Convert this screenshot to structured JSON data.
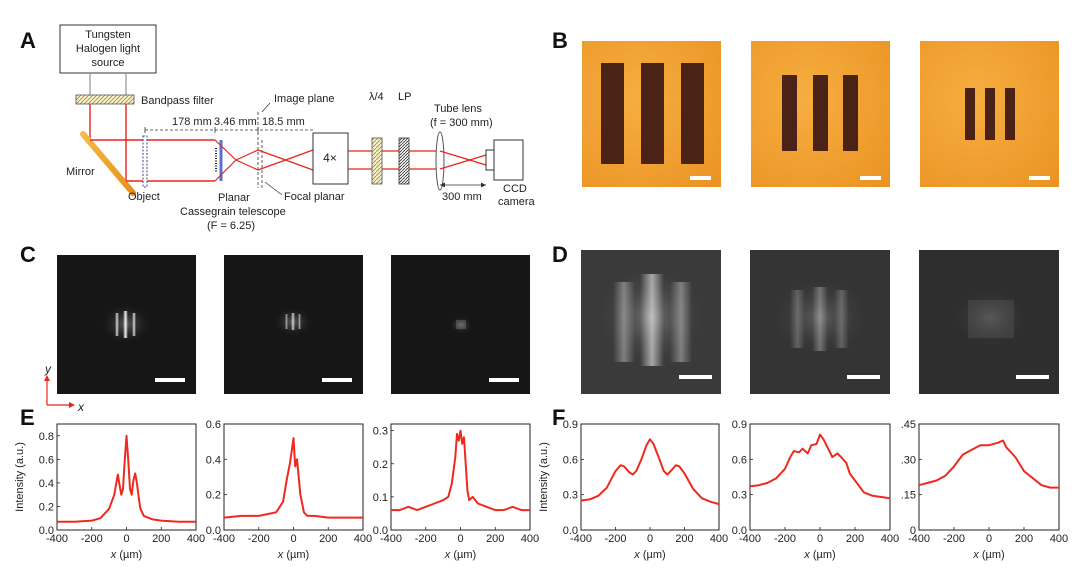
{
  "panels": {
    "A": "A",
    "B": "B",
    "C": "C",
    "D": "D",
    "E": "E",
    "F": "F"
  },
  "schematic": {
    "light_source": [
      "Tungsten",
      "Halogen light",
      "source"
    ],
    "bandpass_filter": "Bandpass filter",
    "mirror": "Mirror",
    "object": "Object",
    "dist_1": "178 mm",
    "dist_2": "3.46 mm",
    "dist_3": "18.5 mm",
    "image_plane": "Image plane",
    "telescope": [
      "Planar",
      "Cassegrain telescope",
      "(F = 6.25)"
    ],
    "focal_planar": "Focal planar",
    "objective": "4×",
    "quarter_wave": "λ/4",
    "lp": "LP",
    "tube_lens": "Tube lens",
    "tube_lens_f": "(f = 300 mm)",
    "dist_4": "300 mm",
    "camera": [
      "CCD",
      "camera"
    ]
  },
  "axes_indicator": {
    "y": "y",
    "x": "x"
  },
  "colors": {
    "curve": "#ee2a1f",
    "beam": "#e8241c",
    "microscope_bg": "#f0a236",
    "bar_dark": "#4a2216",
    "mirror": "#f3a12a"
  },
  "chart_data": [
    {
      "type": "line",
      "panel": "E",
      "index": 1,
      "xlabel": "x (µm)",
      "ylabel": "Intensity (a.u.)",
      "xlim": [
        -400,
        400
      ],
      "ylim": [
        0,
        0.9
      ],
      "xticks": [
        "-400",
        "-200",
        "0",
        "200",
        "400"
      ],
      "yticks": [
        "0.0",
        "0.2",
        "0.4",
        "0.6",
        "0.8"
      ],
      "x": [
        -400,
        -300,
        -200,
        -150,
        -100,
        -70,
        -50,
        -40,
        -30,
        -20,
        -10,
        0,
        10,
        20,
        30,
        40,
        50,
        60,
        70,
        80,
        100,
        150,
        200,
        300,
        400
      ],
      "y": [
        0.07,
        0.07,
        0.08,
        0.1,
        0.18,
        0.3,
        0.47,
        0.38,
        0.3,
        0.35,
        0.6,
        0.8,
        0.6,
        0.35,
        0.3,
        0.42,
        0.48,
        0.4,
        0.28,
        0.18,
        0.12,
        0.09,
        0.08,
        0.07,
        0.07
      ]
    },
    {
      "type": "line",
      "panel": "E",
      "index": 2,
      "xlabel": "x (µm)",
      "ylabel": "",
      "xlim": [
        -400,
        400
      ],
      "ylim": [
        0,
        0.6
      ],
      "xticks": [
        "-400",
        "-200",
        "0",
        "200",
        "400"
      ],
      "yticks": [
        "0.0",
        "0.2",
        "0.4",
        "0.6"
      ],
      "x": [
        -400,
        -300,
        -200,
        -150,
        -100,
        -60,
        -40,
        -20,
        -10,
        0,
        10,
        20,
        30,
        40,
        60,
        80,
        120,
        200,
        300,
        400
      ],
      "y": [
        0.07,
        0.08,
        0.08,
        0.09,
        0.1,
        0.16,
        0.28,
        0.38,
        0.45,
        0.52,
        0.36,
        0.4,
        0.3,
        0.2,
        0.1,
        0.08,
        0.08,
        0.07,
        0.07,
        0.07
      ]
    },
    {
      "type": "line",
      "panel": "E",
      "index": 3,
      "xlabel": "x (µm)",
      "ylabel": "",
      "xlim": [
        -400,
        400
      ],
      "ylim": [
        0,
        0.32
      ],
      "xticks": [
        "-400",
        "-200",
        "0",
        "200",
        "400"
      ],
      "yticks": [
        "0.0",
        "0.1",
        "0.2",
        "0.3"
      ],
      "x": [
        -400,
        -350,
        -300,
        -250,
        -200,
        -150,
        -100,
        -70,
        -50,
        -30,
        -20,
        -10,
        0,
        10,
        20,
        30,
        40,
        50,
        70,
        100,
        150,
        200,
        250,
        300,
        350,
        380,
        400
      ],
      "y": [
        0.06,
        0.06,
        0.07,
        0.06,
        0.07,
        0.08,
        0.09,
        0.1,
        0.14,
        0.22,
        0.29,
        0.27,
        0.3,
        0.26,
        0.28,
        0.2,
        0.12,
        0.09,
        0.1,
        0.08,
        0.07,
        0.06,
        0.06,
        0.07,
        0.06,
        0.06,
        0.06
      ]
    },
    {
      "type": "line",
      "panel": "F",
      "index": 1,
      "xlabel": "x (µm)",
      "ylabel": "Intensity (a.u.)",
      "xlim": [
        -400,
        400
      ],
      "ylim": [
        0,
        0.9
      ],
      "xticks": [
        "-400",
        "-200",
        "0",
        "200",
        "400"
      ],
      "yticks": [
        "0.0",
        "0.3",
        "0.6",
        "0.9"
      ],
      "x": [
        -400,
        -350,
        -300,
        -250,
        -200,
        -170,
        -150,
        -120,
        -100,
        -80,
        -50,
        -20,
        0,
        20,
        50,
        80,
        100,
        120,
        150,
        170,
        200,
        250,
        300,
        350,
        400
      ],
      "y": [
        0.25,
        0.26,
        0.29,
        0.36,
        0.5,
        0.55,
        0.54,
        0.49,
        0.47,
        0.5,
        0.6,
        0.72,
        0.77,
        0.73,
        0.62,
        0.5,
        0.47,
        0.5,
        0.55,
        0.54,
        0.48,
        0.35,
        0.27,
        0.24,
        0.22
      ]
    },
    {
      "type": "line",
      "panel": "F",
      "index": 2,
      "xlabel": "x (µm)",
      "ylabel": "",
      "xlim": [
        -400,
        400
      ],
      "ylim": [
        0,
        0.9
      ],
      "xticks": [
        "-400",
        "-200",
        "0",
        "200",
        "400"
      ],
      "yticks": [
        "0.0",
        "0.3",
        "0.6",
        "0.9"
      ],
      "x": [
        -400,
        -350,
        -300,
        -250,
        -200,
        -170,
        -150,
        -120,
        -100,
        -70,
        -50,
        -20,
        0,
        20,
        50,
        70,
        100,
        120,
        150,
        170,
        200,
        250,
        300,
        350,
        400
      ],
      "y": [
        0.37,
        0.38,
        0.4,
        0.44,
        0.52,
        0.62,
        0.67,
        0.66,
        0.69,
        0.65,
        0.72,
        0.73,
        0.81,
        0.77,
        0.68,
        0.62,
        0.65,
        0.62,
        0.57,
        0.48,
        0.42,
        0.32,
        0.29,
        0.28,
        0.27
      ]
    },
    {
      "type": "line",
      "panel": "F",
      "index": 3,
      "xlabel": "x (µm)",
      "ylabel": "",
      "xlim": [
        -400,
        400
      ],
      "ylim": [
        0,
        0.45
      ],
      "xticks": [
        "-400",
        "-200",
        "0",
        "200",
        "400"
      ],
      "yticks": [
        "0",
        ".15",
        ".30",
        ".45"
      ],
      "x": [
        -400,
        -350,
        -300,
        -250,
        -200,
        -150,
        -100,
        -50,
        0,
        50,
        80,
        100,
        150,
        200,
        250,
        300,
        350,
        400
      ],
      "y": [
        0.19,
        0.2,
        0.21,
        0.23,
        0.27,
        0.32,
        0.34,
        0.36,
        0.36,
        0.37,
        0.38,
        0.35,
        0.31,
        0.25,
        0.22,
        0.19,
        0.18,
        0.18
      ]
    }
  ]
}
